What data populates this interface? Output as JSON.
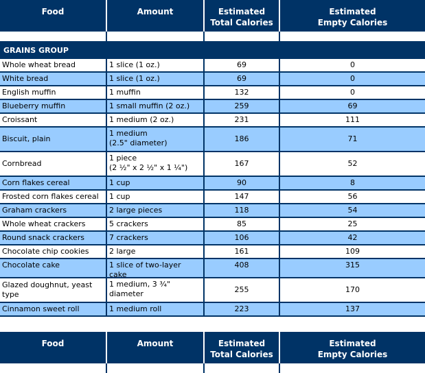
{
  "header": {
    "food": "Food",
    "amount": "Amount",
    "total_line1": "Estimated",
    "total_line2": "Total Calories",
    "empty_line1": "Estimated",
    "empty_line2": "Empty Calories"
  },
  "group_title": "GRAINS GROUP",
  "rows": [
    {
      "food": "Whole wheat bread",
      "amount": "1 slice (1 oz.)",
      "total": "69",
      "empty": "0"
    },
    {
      "food": "White bread",
      "amount": "1 slice (1 oz.)",
      "total": "69",
      "empty": "0"
    },
    {
      "food": "English muffin",
      "amount": "1 muffin",
      "total": "132",
      "empty": "0"
    },
    {
      "food": "Blueberry muffin",
      "amount": "1 small muffin (2 oz.)",
      "total": "259",
      "empty": "69"
    },
    {
      "food": "Croissant",
      "amount": "1 medium (2 oz.)",
      "total": "231",
      "empty": "111"
    },
    {
      "food": "Biscuit, plain",
      "amount": "1 medium\n(2.5\" diameter)",
      "total": "186",
      "empty": "71"
    },
    {
      "food": "Cornbread",
      "amount": "1 piece\n(2 ½\" x 2 ½\" x 1 ¼\")",
      "total": "167",
      "empty": "52"
    },
    {
      "food": "Corn flakes cereal",
      "amount": "1 cup",
      "total": "90",
      "empty": "8"
    },
    {
      "food": "Frosted corn flakes cereal",
      "amount": "1 cup",
      "total": "147",
      "empty": "56"
    },
    {
      "food": "Graham crackers",
      "amount": "2 large pieces",
      "total": "118",
      "empty": "54"
    },
    {
      "food": "Whole wheat crackers",
      "amount": "5 crackers",
      "total": "85",
      "empty": "25"
    },
    {
      "food": "Round snack crackers",
      "amount": "7 crackers",
      "total": "106",
      "empty": "42"
    },
    {
      "food": "Chocolate chip cookies",
      "amount": "2 large",
      "total": "161",
      "empty": "109"
    },
    {
      "food": "Chocolate cake",
      "amount": "1 slice of two-layer cake",
      "total": "408",
      "empty": "315"
    },
    {
      "food": "Glazed doughnut, yeast type",
      "amount": "1 medium, 3 ¾\" diameter",
      "total": "255",
      "empty": "170"
    },
    {
      "food": "Cinnamon sweet roll",
      "amount": "1 medium roll",
      "total": "223",
      "empty": "137"
    }
  ]
}
